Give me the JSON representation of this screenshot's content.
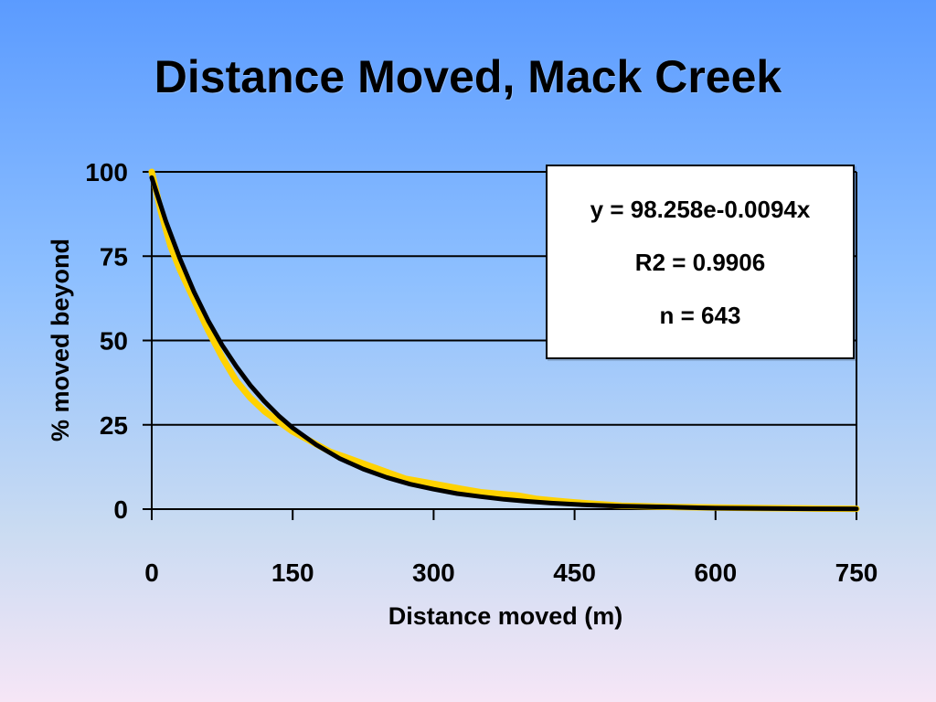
{
  "title": "Distance Moved, Mack Creek",
  "chart_data": {
    "type": "line",
    "xlabel": "Distance moved (m)",
    "ylabel": "% moved beyond",
    "xlim": [
      0,
      750
    ],
    "ylim": [
      0,
      100
    ],
    "x_ticks": [
      0,
      150,
      300,
      450,
      600,
      750
    ],
    "y_ticks": [
      0,
      25,
      50,
      75,
      100
    ],
    "grid": "horizontal",
    "annotation": {
      "equation": "y = 98.258e-0.0094x",
      "r2": "R2 = 0.9906",
      "n": "n = 643"
    },
    "series": [
      {
        "color": "#ffd200",
        "x": [
          0,
          10,
          20,
          30,
          45,
          60,
          75,
          90,
          105,
          120,
          135,
          150,
          170,
          190,
          210,
          230,
          250,
          270,
          290,
          310,
          330,
          350,
          370,
          390,
          410,
          430,
          450,
          475,
          500,
          530,
          560,
          600,
          650,
          700,
          750
        ],
        "y": [
          100,
          88,
          78,
          71,
          62,
          53,
          45,
          38,
          33,
          29,
          26,
          23,
          20,
          17,
          15,
          13,
          11,
          9,
          8,
          7,
          6,
          5,
          4.5,
          4,
          3,
          2.5,
          2,
          1.5,
          1,
          0.8,
          0.6,
          0.5,
          0.3,
          0.2,
          0.1
        ]
      },
      {
        "color": "#000000",
        "x": [
          0,
          15,
          30,
          45,
          60,
          75,
          90,
          105,
          120,
          135,
          150,
          175,
          200,
          225,
          250,
          275,
          300,
          325,
          350,
          375,
          400,
          425,
          450,
          475,
          500,
          550,
          600,
          650,
          700,
          750
        ],
        "y": [
          98.3,
          85.4,
          74.3,
          64.4,
          55.9,
          48.6,
          42.3,
          36.7,
          31.9,
          27.7,
          24.1,
          19.1,
          15.0,
          11.9,
          9.4,
          7.4,
          5.9,
          4.6,
          3.7,
          2.9,
          2.3,
          1.8,
          1.4,
          1.1,
          0.9,
          0.6,
          0.3,
          0.2,
          0.1,
          0.08
        ]
      }
    ]
  }
}
